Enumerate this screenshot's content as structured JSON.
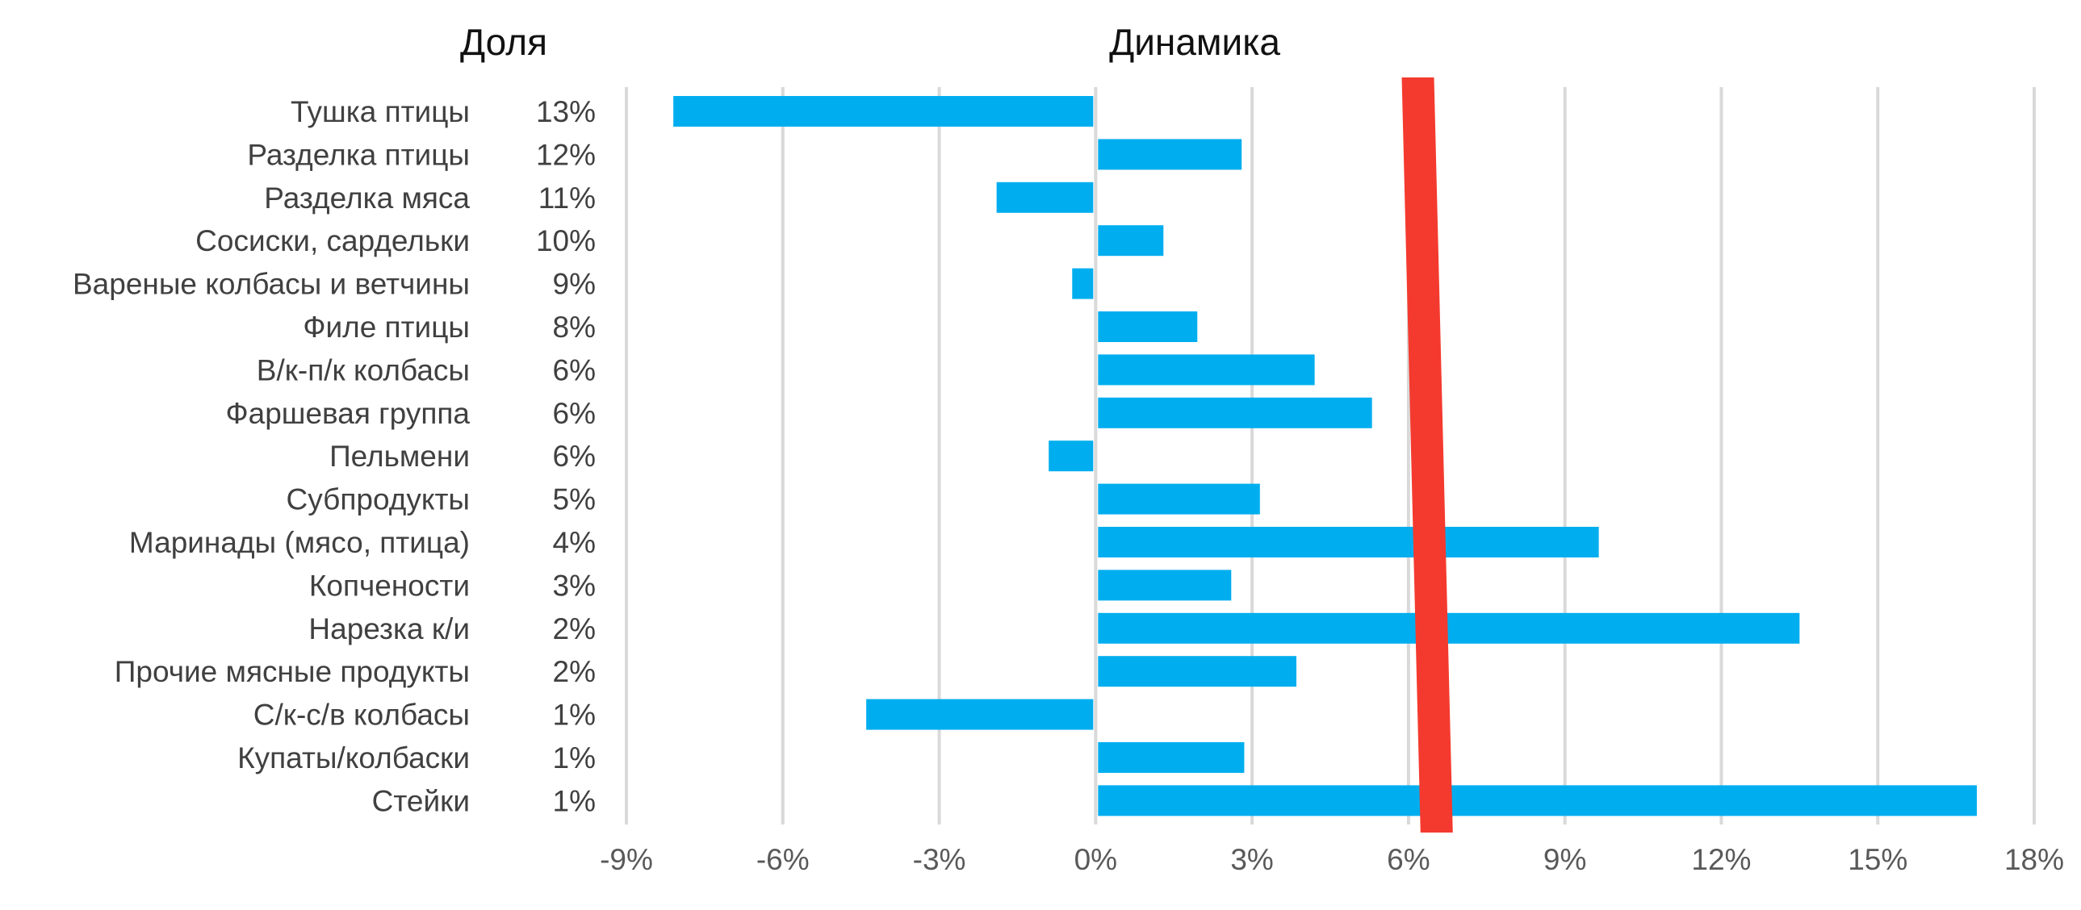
{
  "headers": {
    "share": "Доля",
    "dynamics": "Динамика"
  },
  "colors": {
    "bar": "#00AEEF",
    "marker": "#F43A2E",
    "grid": "#D9D9D9",
    "text": "#404040"
  },
  "chart_data": {
    "type": "bar",
    "orientation": "horizontal",
    "title": "",
    "xlabel": "",
    "ylabel": "",
    "xlim": [
      -0.09,
      0.18
    ],
    "x_ticks": [
      -0.09,
      -0.06,
      -0.03,
      0,
      0.03,
      0.06,
      0.09,
      0.12,
      0.15,
      0.18
    ],
    "x_tick_labels": [
      "-9%",
      "-6%",
      "-3%",
      "0%",
      "3%",
      "6%",
      "9%",
      "12%",
      "15%",
      "18%"
    ],
    "grid": true,
    "legend": "none",
    "categories": [
      "Тушка птицы",
      "Разделка птицы",
      "Разделка мяса",
      "Сосиски, сардельки",
      "Вареные колбасы и ветчины",
      "Филе птицы",
      "В/к-п/к колбасы",
      "Фаршевая группа",
      "Пельмени",
      "Субпродукты",
      "Маринады (мясо, птица)",
      "Копчености",
      "Нарезка к/и",
      "Прочие мясные продукты",
      "С/к-с/в колбасы",
      "Купаты/колбаски",
      "Стейки"
    ],
    "shares": [
      "13%",
      "12%",
      "11%",
      "10%",
      "9%",
      "8%",
      "6%",
      "6%",
      "6%",
      "5%",
      "4%",
      "3%",
      "2%",
      "2%",
      "1%",
      "1%",
      "1%"
    ],
    "values": [
      -0.081,
      0.028,
      -0.019,
      0.013,
      -0.0045,
      0.0195,
      0.042,
      0.053,
      -0.009,
      0.0315,
      0.0965,
      0.026,
      0.135,
      0.0385,
      -0.044,
      0.0285,
      0.169
    ],
    "reference_band": {
      "value_top": 0.0618,
      "value_bottom": 0.0654
    }
  }
}
